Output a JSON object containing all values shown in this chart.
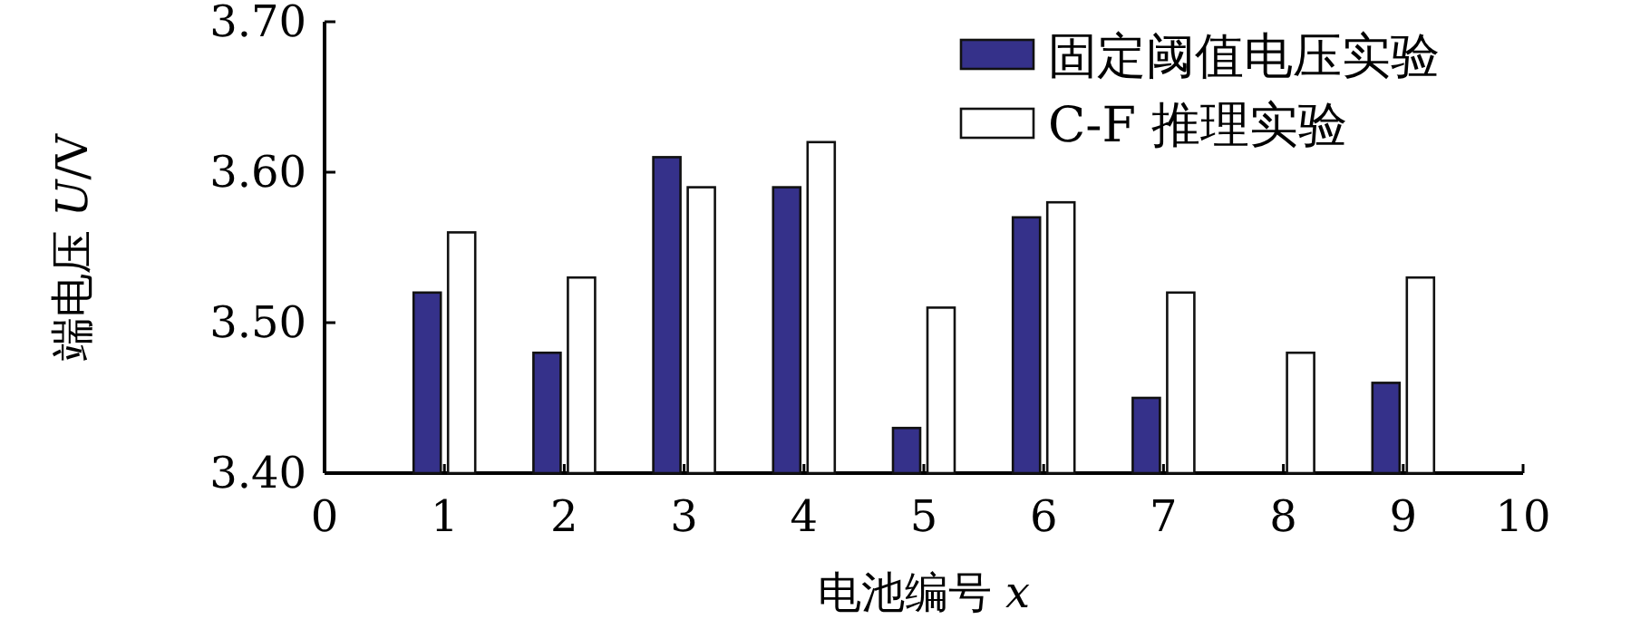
{
  "chart_data": {
    "type": "bar",
    "xlabel": "电池编号 *x*",
    "ylabel": "端电压 *U*/V",
    "x": [
      1,
      2,
      3,
      4,
      5,
      6,
      7,
      8,
      9
    ],
    "series": [
      {
        "name": "固定阈值电压实验",
        "color": "#35318a",
        "values": [
          3.52,
          3.48,
          3.61,
          3.59,
          3.43,
          3.57,
          3.45,
          null,
          3.46
        ]
      },
      {
        "name": "C-F 推理实验",
        "color": "#ffffff",
        "values": [
          3.56,
          3.53,
          3.59,
          3.62,
          3.51,
          3.58,
          3.52,
          3.48,
          3.53
        ]
      }
    ],
    "xlim": [
      0,
      10
    ],
    "xticks": [
      0,
      1,
      2,
      3,
      4,
      5,
      6,
      7,
      8,
      9,
      10
    ],
    "ylim": [
      3.4,
      3.7
    ],
    "yticks": [
      {
        "value": 3.4,
        "label": "3.40"
      },
      {
        "value": 3.5,
        "label": "3.50"
      },
      {
        "value": 3.6,
        "label": "3.60"
      },
      {
        "value": 3.7,
        "label": "3.70"
      }
    ],
    "legend": "top right"
  }
}
